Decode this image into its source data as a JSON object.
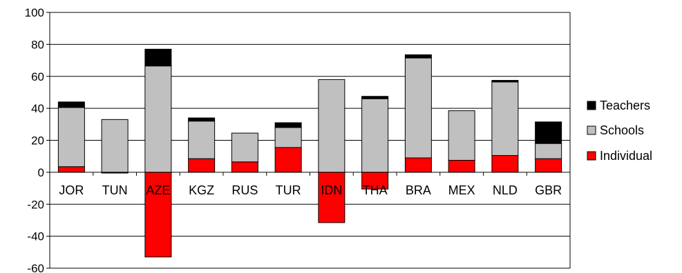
{
  "chart_data": {
    "type": "bar",
    "stacked": true,
    "categories": [
      "JOR",
      "TUN",
      "AZE",
      "KGZ",
      "RUS",
      "TUR",
      "IDN",
      "THA",
      "BRA",
      "MEX",
      "NLD",
      "GBR"
    ],
    "series": [
      {
        "name": "Individual",
        "color": "#ff0000",
        "values": [
          3.5,
          -0.5,
          -53,
          8.5,
          6.5,
          15.5,
          -31.5,
          -10.5,
          9,
          7.5,
          10.5,
          8.5
        ]
      },
      {
        "name": "Schools",
        "color": "#c0c0c0",
        "values": [
          37,
          33,
          66.5,
          23.5,
          18,
          12.5,
          58,
          46,
          62.5,
          31,
          46,
          9.5
        ]
      },
      {
        "name": "Teachers",
        "color": "#000000",
        "values": [
          3.5,
          0,
          10.5,
          2,
          0,
          3,
          0,
          1.5,
          2,
          0,
          1,
          13.5
        ]
      }
    ],
    "yticks": [
      "100",
      "80",
      "60",
      "40",
      "20",
      "0",
      "-20",
      "-40",
      "-60"
    ],
    "ylim": [
      -60,
      100
    ],
    "grid": true,
    "legend_position": "right",
    "legend_order": [
      "Teachers",
      "Schools",
      "Individual"
    ]
  }
}
